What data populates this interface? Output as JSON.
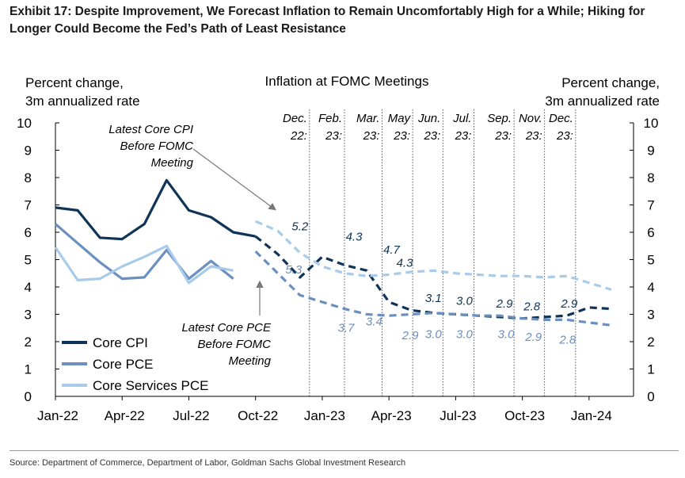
{
  "title": "Exhibit 17: Despite Improvement, We Forecast Inflation to Remain Uncomfortably High for a While; Hiking for Longer Could Become the Fed’s Path of Least Resistance",
  "source": "Source: Department of Commerce, Department of Labor, Goldman Sachs Global Investment Research",
  "chart_data": {
    "type": "line",
    "header": "Inflation at FOMC Meetings",
    "ylabel_left": [
      "Percent change,",
      "3m annualized rate"
    ],
    "ylabel_right": [
      "Percent change,",
      "3m annualized rate"
    ],
    "ylim": [
      0,
      10
    ],
    "yticks": [
      "0",
      "1",
      "2",
      "3",
      "4",
      "5",
      "6",
      "7",
      "8",
      "9",
      "10"
    ],
    "xticks": [
      "Jan-22",
      "Apr-22",
      "Jul-22",
      "Oct-22",
      "Jan-23",
      "Apr-23",
      "Jul-23",
      "Oct-23",
      "Jan-24"
    ],
    "colors": {
      "core_cpi": "#0f3457",
      "core_pce": "#6b8fbf",
      "core_services_pce": "#a9cbea"
    },
    "series": [
      {
        "name": "Core CPI",
        "key": "core_cpi",
        "actual": [
          [
            "2022-01",
            6.9
          ],
          [
            "2022-02",
            6.8
          ],
          [
            "2022-03",
            5.8
          ],
          [
            "2022-04",
            5.75
          ],
          [
            "2022-05",
            6.3
          ],
          [
            "2022-06",
            7.9
          ],
          [
            "2022-07",
            6.8
          ],
          [
            "2022-08",
            6.55
          ],
          [
            "2022-09",
            6.0
          ],
          [
            "2022-10",
            5.85
          ]
        ],
        "forecast": [
          [
            "2022-10",
            5.85
          ],
          [
            "2022-11",
            5.2
          ],
          [
            "2022-12",
            4.35
          ],
          [
            "2023-01",
            5.1
          ],
          [
            "2023-02",
            4.8
          ],
          [
            "2023-03",
            4.6
          ],
          [
            "2023-04",
            3.45
          ],
          [
            "2023-05",
            3.15
          ],
          [
            "2023-06",
            3.05
          ],
          [
            "2023-07",
            3.0
          ],
          [
            "2023-08",
            2.95
          ],
          [
            "2023-09",
            2.9
          ],
          [
            "2023-10",
            2.85
          ],
          [
            "2023-11",
            2.9
          ],
          [
            "2023-12",
            2.95
          ],
          [
            "2024-01",
            3.25
          ],
          [
            "2024-02",
            3.2
          ]
        ]
      },
      {
        "name": "Core PCE",
        "key": "core_pce",
        "actual": [
          [
            "2022-01",
            6.3
          ],
          [
            "2022-02",
            5.6
          ],
          [
            "2022-03",
            4.9
          ],
          [
            "2022-04",
            4.3
          ],
          [
            "2022-05",
            4.35
          ],
          [
            "2022-06",
            5.35
          ],
          [
            "2022-07",
            4.3
          ],
          [
            "2022-08",
            4.95
          ],
          [
            "2022-09",
            4.3
          ]
        ],
        "forecast": [
          [
            "2022-10",
            5.3
          ],
          [
            "2022-11",
            4.5
          ],
          [
            "2022-12",
            3.7
          ],
          [
            "2023-01",
            3.45
          ],
          [
            "2023-02",
            3.2
          ],
          [
            "2023-03",
            3.0
          ],
          [
            "2023-04",
            2.95
          ],
          [
            "2023-05",
            3.0
          ],
          [
            "2023-06",
            3.05
          ],
          [
            "2023-07",
            3.0
          ],
          [
            "2023-08",
            2.95
          ],
          [
            "2023-09",
            2.95
          ],
          [
            "2023-10",
            2.85
          ],
          [
            "2023-11",
            2.8
          ],
          [
            "2023-12",
            2.8
          ],
          [
            "2024-01",
            2.7
          ],
          [
            "2024-02",
            2.6
          ]
        ]
      },
      {
        "name": "Core Services PCE",
        "key": "core_services_pce",
        "actual": [
          [
            "2022-01",
            5.45
          ],
          [
            "2022-02",
            4.25
          ],
          [
            "2022-03",
            4.3
          ],
          [
            "2022-04",
            4.75
          ],
          [
            "2022-05",
            5.1
          ],
          [
            "2022-06",
            5.5
          ],
          [
            "2022-07",
            4.15
          ],
          [
            "2022-08",
            4.75
          ],
          [
            "2022-09",
            4.6
          ]
        ],
        "forecast": [
          [
            "2022-10",
            6.4
          ],
          [
            "2022-11",
            6.05
          ],
          [
            "2022-12",
            5.25
          ],
          [
            "2023-01",
            4.75
          ],
          [
            "2023-02",
            4.5
          ],
          [
            "2023-03",
            4.4
          ],
          [
            "2023-04",
            4.45
          ],
          [
            "2023-05",
            4.55
          ],
          [
            "2023-06",
            4.6
          ],
          [
            "2023-07",
            4.5
          ],
          [
            "2023-08",
            4.45
          ],
          [
            "2023-09",
            4.4
          ],
          [
            "2023-10",
            4.4
          ],
          [
            "2023-11",
            4.35
          ],
          [
            "2023-12",
            4.4
          ],
          [
            "2024-01",
            4.15
          ],
          [
            "2024-02",
            3.9
          ]
        ]
      }
    ],
    "meetings": [
      {
        "label": [
          "Dec.",
          "22:"
        ],
        "x": "2022-12-14",
        "cpi": "5.2",
        "pce": "5.3"
      },
      {
        "label": [
          "Feb.",
          "23:"
        ],
        "x": "2023-02-01",
        "cpi": "4.3",
        "pce": "3.7"
      },
      {
        "label": [
          "Mar.",
          "23:"
        ],
        "x": "2023-03-22",
        "cpi": "4.7",
        "pce": "3.4"
      },
      {
        "label": [
          "May",
          "23:"
        ],
        "x": "2023-05-03",
        "cpi": "4.3",
        "pce": "2.9"
      },
      {
        "label": [
          "Jun.",
          "23:"
        ],
        "x": "2023-06-14",
        "cpi": "3.1",
        "pce": "3.0"
      },
      {
        "label": [
          "Jul.",
          "23:"
        ],
        "x": "2023-07-26",
        "cpi": "3.0",
        "pce": "3.0"
      },
      {
        "label": [
          "Sep.",
          "23:"
        ],
        "x": "2023-09-20",
        "cpi": "2.9",
        "pce": "3.0"
      },
      {
        "label": [
          "Nov.",
          "23:"
        ],
        "x": "2023-11-01",
        "cpi": "2.8",
        "pce": "2.9"
      },
      {
        "label": [
          "Dec.",
          "23:"
        ],
        "x": "2023-12-13",
        "cpi": "2.9",
        "pce": "2.8"
      }
    ],
    "annotations": {
      "cpi": [
        "Latest Core CPI",
        "Before FOMC",
        "Meeting"
      ],
      "pce": [
        "Latest Core PCE",
        "Before FOMC",
        "Meeting"
      ]
    },
    "legend": {
      "placement": "bottom-left",
      "items": [
        "Core CPI",
        "Core PCE",
        "Core Services PCE"
      ]
    },
    "grid": false
  }
}
